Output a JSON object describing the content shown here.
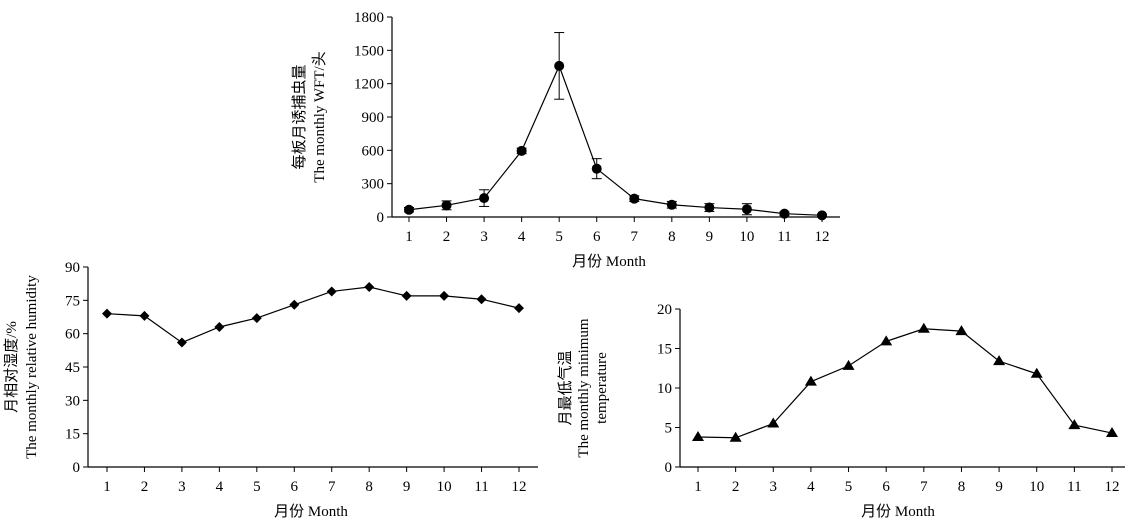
{
  "chart_data": [
    {
      "type": "line",
      "xlabel": "月份 Month",
      "ylabel": [
        "每板月诱捕虫量",
        "The monthly WFT/头"
      ],
      "x": [
        1,
        2,
        3,
        4,
        5,
        6,
        7,
        8,
        9,
        10,
        11,
        12
      ],
      "xticks": [
        "1",
        "2",
        "3",
        "4",
        "5",
        "6",
        "7",
        "8",
        "9",
        "10",
        "11",
        "12"
      ],
      "yticks": [
        "0",
        "300",
        "600",
        "900",
        "1200",
        "1500",
        "1800"
      ],
      "ylim": [
        0,
        1800
      ],
      "marker": "circle",
      "error_bars": true,
      "series": [
        {
          "values": [
            65,
            105,
            170,
            595,
            1360,
            435,
            165,
            110,
            85,
            70,
            30,
            15
          ],
          "error": [
            20,
            40,
            75,
            25,
            300,
            90,
            25,
            30,
            35,
            50,
            15,
            10
          ]
        }
      ]
    },
    {
      "type": "line",
      "xlabel": "月份 Month",
      "ylabel": [
        "月相对湿度/%",
        "The monthly relative humidity"
      ],
      "x": [
        1,
        2,
        3,
        4,
        5,
        6,
        7,
        8,
        9,
        10,
        11,
        12
      ],
      "xticks": [
        "1",
        "2",
        "3",
        "4",
        "5",
        "6",
        "7",
        "8",
        "9",
        "10",
        "11",
        "12"
      ],
      "yticks": [
        "0",
        "15",
        "30",
        "45",
        "60",
        "75",
        "90"
      ],
      "ylim": [
        0,
        90
      ],
      "marker": "diamond",
      "series": [
        {
          "values": [
            69,
            68,
            56,
            63,
            67,
            73,
            79,
            81,
            77,
            77,
            75.5,
            71.5
          ]
        }
      ]
    },
    {
      "type": "line",
      "xlabel": "月份 Month",
      "ylabel": [
        "月最低气温",
        "The monthly minimum",
        "temperature"
      ],
      "x": [
        1,
        2,
        3,
        4,
        5,
        6,
        7,
        8,
        9,
        10,
        11,
        12
      ],
      "xticks": [
        "1",
        "2",
        "3",
        "4",
        "5",
        "6",
        "7",
        "8",
        "9",
        "10",
        "11",
        "12"
      ],
      "yticks": [
        "0",
        "5",
        "10",
        "15",
        "20"
      ],
      "ylim": [
        0,
        20
      ],
      "marker": "triangle",
      "series": [
        {
          "values": [
            3.8,
            3.7,
            5.5,
            10.8,
            12.8,
            15.9,
            17.5,
            17.2,
            13.4,
            11.8,
            5.3,
            4.3
          ]
        }
      ]
    }
  ]
}
